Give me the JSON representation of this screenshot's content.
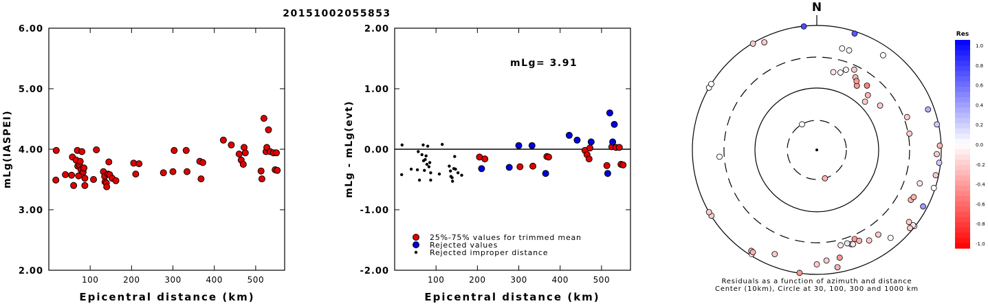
{
  "page_title": "20151002055853",
  "colors": {
    "trimmed": "#e00000",
    "rejected": "#0000e0",
    "improper": "#000000",
    "residual_negative": "#ff0000",
    "residual_positive": "#0000ff"
  },
  "chart_data": [
    {
      "type": "scatter",
      "title": "",
      "xlabel": "Epicentral distance (km)",
      "ylabel": "mLg(IASPEI)",
      "xlim": [
        0,
        570
      ],
      "ylim": [
        2.0,
        6.0
      ],
      "x_ticks": [
        100,
        200,
        300,
        400,
        500
      ],
      "y_ticks": [
        "2.00",
        "3.00",
        "4.00",
        "5.00",
        "6.00"
      ],
      "series": [
        {
          "color": "#e00000",
          "points": [
            [
              17,
              3.49
            ],
            [
              18,
              3.98
            ],
            [
              40,
              3.58
            ],
            [
              55,
              3.57
            ],
            [
              57,
              3.87
            ],
            [
              60,
              3.4
            ],
            [
              66,
              3.82
            ],
            [
              69,
              3.98
            ],
            [
              70,
              3.72
            ],
            [
              72,
              3.56
            ],
            [
              74,
              3.74
            ],
            [
              76,
              3.8
            ],
            [
              78,
              3.66
            ],
            [
              80,
              3.96
            ],
            [
              83,
              3.62
            ],
            [
              85,
              3.69
            ],
            [
              87,
              3.52
            ],
            [
              87,
              3.4
            ],
            [
              108,
              3.5
            ],
            [
              115,
              3.99
            ],
            [
              132,
              3.63
            ],
            [
              135,
              3.55
            ],
            [
              136,
              3.46
            ],
            [
              139,
              3.44
            ],
            [
              140,
              3.38
            ],
            [
              143,
              3.59
            ],
            [
              145,
              3.79
            ],
            [
              147,
              3.58
            ],
            [
              153,
              3.52
            ],
            [
              162,
              3.48
            ],
            [
              205,
              3.77
            ],
            [
              210,
              3.59
            ],
            [
              218,
              3.76
            ],
            [
              277,
              3.61
            ],
            [
              300,
              3.63
            ],
            [
              303,
              3.98
            ],
            [
              332,
              3.98
            ],
            [
              334,
              3.63
            ],
            [
              365,
              3.8
            ],
            [
              368,
              3.51
            ],
            [
              372,
              3.78
            ],
            [
              422,
              4.15
            ],
            [
              441,
              4.07
            ],
            [
              460,
              3.92
            ],
            [
              465,
              3.82
            ],
            [
              470,
              3.75
            ],
            [
              472,
              4.03
            ],
            [
              475,
              3.94
            ],
            [
              513,
              3.64
            ],
            [
              515,
              3.51
            ],
            [
              520,
              4.51
            ],
            [
              525,
              3.96
            ],
            [
              527,
              4.03
            ],
            [
              531,
              4.32
            ],
            [
              535,
              3.96
            ],
            [
              543,
              3.94
            ],
            [
              547,
              3.66
            ],
            [
              550,
              3.94
            ],
            [
              552,
              3.65
            ]
          ]
        }
      ]
    },
    {
      "type": "scatter",
      "title": "",
      "annotation": "mLg= 3.91",
      "xlabel": "Epicentral distance (km)",
      "ylabel": "mLg - mLg(evt)",
      "xlim": [
        0,
        570
      ],
      "ylim": [
        -2.0,
        2.0
      ],
      "x_ticks": [
        100,
        200,
        300,
        400,
        500
      ],
      "y_ticks": [
        "-2.00",
        "-1.00",
        "0.00",
        "1.00",
        "2.00"
      ],
      "zero_line": true,
      "legend_position": "bottom-left",
      "series": [
        {
          "name": "25%-75% values for trimmed mean",
          "color": "#e00000",
          "points": [
            [
              205,
              -0.13
            ],
            [
              218,
              -0.16
            ],
            [
              303,
              -0.29
            ],
            [
              334,
              -0.28
            ],
            [
              368,
              -0.12
            ],
            [
              372,
              -0.13
            ],
            [
              460,
              -0.02
            ],
            [
              465,
              -0.09
            ],
            [
              470,
              -0.16
            ],
            [
              472,
              0.02
            ],
            [
              513,
              -0.27
            ],
            [
              525,
              0.04
            ],
            [
              535,
              0.03
            ],
            [
              543,
              0.03
            ],
            [
              547,
              -0.25
            ],
            [
              552,
              -0.26
            ]
          ]
        },
        {
          "name": "Rejected values",
          "color": "#0000e0",
          "points": [
            [
              210,
              -0.32
            ],
            [
              277,
              -0.3
            ],
            [
              300,
              0.06
            ],
            [
              332,
              0.06
            ],
            [
              365,
              -0.4
            ],
            [
              422,
              0.23
            ],
            [
              441,
              0.15
            ],
            [
              475,
              0.12
            ],
            [
              515,
              -0.4
            ],
            [
              520,
              0.6
            ],
            [
              527,
              0.12
            ],
            [
              531,
              0.41
            ]
          ]
        },
        {
          "name": "Rejected improper distance",
          "color": "#000000",
          "points": [
            [
              17,
              -0.42
            ],
            [
              18,
              0.07
            ],
            [
              40,
              -0.33
            ],
            [
              55,
              -0.34
            ],
            [
              57,
              -0.04
            ],
            [
              60,
              -0.51
            ],
            [
              66,
              -0.09
            ],
            [
              69,
              0.07
            ],
            [
              70,
              -0.19
            ],
            [
              72,
              -0.35
            ],
            [
              74,
              -0.17
            ],
            [
              76,
              -0.11
            ],
            [
              78,
              -0.25
            ],
            [
              80,
              0.05
            ],
            [
              83,
              -0.29
            ],
            [
              85,
              -0.22
            ],
            [
              87,
              -0.39
            ],
            [
              87,
              -0.51
            ],
            [
              108,
              -0.41
            ],
            [
              115,
              0.08
            ],
            [
              132,
              -0.28
            ],
            [
              135,
              -0.36
            ],
            [
              136,
              -0.45
            ],
            [
              139,
              -0.47
            ],
            [
              140,
              -0.53
            ],
            [
              143,
              -0.32
            ],
            [
              145,
              -0.12
            ],
            [
              147,
              -0.33
            ],
            [
              153,
              -0.39
            ],
            [
              162,
              -0.43
            ]
          ]
        }
      ]
    },
    {
      "type": "scatter",
      "subtype": "polar",
      "north_label": "N",
      "caption_line1": "Residuals as a function of azimuth and distance",
      "caption_line2": "Center (10km), Circle at 30, 100, 300 and 1000 km",
      "ring_distances_km": [
        30,
        100,
        300,
        1000
      ],
      "stations": [
        {
          "az": 354,
          "dist_km": 990,
          "res": 0.7
        },
        {
          "az": 18,
          "dist_km": 925,
          "res": 0.65
        },
        {
          "az": 329,
          "dist_km": 980,
          "res": -0.2
        },
        {
          "az": 334,
          "dist_km": 840,
          "res": -0.2
        },
        {
          "az": 18,
          "dist_km": 480,
          "res": 0.03
        },
        {
          "az": 14,
          "dist_km": 480,
          "res": 0.0
        },
        {
          "az": 35,
          "dist_km": 720,
          "res": 0.0
        },
        {
          "az": 300,
          "dist_km": 1000,
          "res": 0.02
        },
        {
          "az": 20,
          "dist_km": 235,
          "res": -0.05
        },
        {
          "az": 28,
          "dist_km": 210,
          "res": -0.3
        },
        {
          "az": 25,
          "dist_km": 265,
          "res": -0.2
        },
        {
          "az": 17,
          "dist_km": 200,
          "res": 0.0
        },
        {
          "az": 12,
          "dist_km": 190,
          "res": -0.1
        },
        {
          "az": 32,
          "dist_km": 165,
          "res": -0.4
        },
        {
          "az": 30,
          "dist_km": 190,
          "res": -0.4
        },
        {
          "az": 38,
          "dist_km": 205,
          "res": -0.5
        },
        {
          "az": 43,
          "dist_km": 160,
          "res": -0.3
        },
        {
          "az": 55,
          "dist_km": 175,
          "res": -0.2
        },
        {
          "az": 45,
          "dist_km": 125,
          "res": -0.2
        },
        {
          "az": 70,
          "dist_km": 800,
          "res": 0.3
        },
        {
          "az": 78,
          "dist_km": 940,
          "res": 0.2
        },
        {
          "az": 70,
          "dist_km": 350,
          "res": -0.2
        },
        {
          "az": 80,
          "dist_km": 325,
          "res": -0.2
        },
        {
          "az": 88,
          "dist_km": 950,
          "res": -0.3
        },
        {
          "az": 96,
          "dist_km": 950,
          "res": 0.2
        },
        {
          "az": 92,
          "dist_km": 850,
          "res": -0.2
        },
        {
          "az": 102,
          "dist_km": 900,
          "res": -0.2
        },
        {
          "az": 108,
          "dist_km": 950,
          "res": 0.0
        },
        {
          "az": 118,
          "dist_km": 860,
          "res": 0.4
        },
        {
          "az": 128,
          "dist_km": 975,
          "res": 0.0
        },
        {
          "az": 128,
          "dist_km": 920,
          "res": -0.1
        },
        {
          "az": 130,
          "dist_km": 900,
          "res": -0.2
        },
        {
          "az": 108,
          "dist_km": 550,
          "res": -0.1
        },
        {
          "az": 118,
          "dist_km": 515,
          "res": -0.3
        },
        {
          "az": 116,
          "dist_km": 540,
          "res": -0.3
        },
        {
          "az": 128,
          "dist_km": 760,
          "res": -0.2
        },
        {
          "az": 140,
          "dist_km": 700,
          "res": 0.0
        },
        {
          "az": 150,
          "dist_km": 480,
          "res": -0.2
        },
        {
          "az": 144,
          "dist_km": 480,
          "res": -0.2
        },
        {
          "az": 157,
          "dist_km": 360,
          "res": -0.4
        },
        {
          "az": 160,
          "dist_km": 410,
          "res": -0.3
        },
        {
          "az": 155,
          "dist_km": 410,
          "res": -0.3
        },
        {
          "az": 162,
          "dist_km": 380,
          "res": 0.1
        },
        {
          "az": 166,
          "dist_km": 380,
          "res": -0.1
        },
        {
          "az": 159,
          "dist_km": 420,
          "res": -0.1
        },
        {
          "az": 168,
          "dist_km": 590,
          "res": -0.4
        },
        {
          "az": 170,
          "dist_km": 820,
          "res": -0.3
        },
        {
          "az": 175,
          "dist_km": 610,
          "res": -0.2
        },
        {
          "az": 180,
          "dist_km": 690,
          "res": -0.2
        },
        {
          "az": 188,
          "dist_km": 990,
          "res": -0.4
        },
        {
          "az": 164,
          "dist_km": 30,
          "res": -0.3
        },
        {
          "az": 202,
          "dist_km": 640,
          "res": -0.2
        },
        {
          "az": 212,
          "dist_km": 940,
          "res": 0.0
        },
        {
          "az": 213,
          "dist_km": 860,
          "res": -0.3
        },
        {
          "az": 212,
          "dist_km": 870,
          "res": -0.3
        },
        {
          "az": 238,
          "dist_km": 990,
          "res": -0.2
        },
        {
          "az": 240,
          "dist_km": 1000,
          "res": -0.2
        },
        {
          "az": 266,
          "dist_km": 370,
          "res": 0.0
        },
        {
          "az": 302,
          "dist_km": 1000,
          "res": 0.0
        },
        {
          "az": 330,
          "dist_km": 30,
          "res": 0.0
        }
      ],
      "colorbar": {
        "title": "Res",
        "ticks": [
          "1.0",
          "0.8",
          "0.6",
          "0.4",
          "0.2",
          "0.0",
          "-0.2",
          "-0.4",
          "-0.6",
          "-0.8",
          "-1.0"
        ]
      }
    }
  ]
}
